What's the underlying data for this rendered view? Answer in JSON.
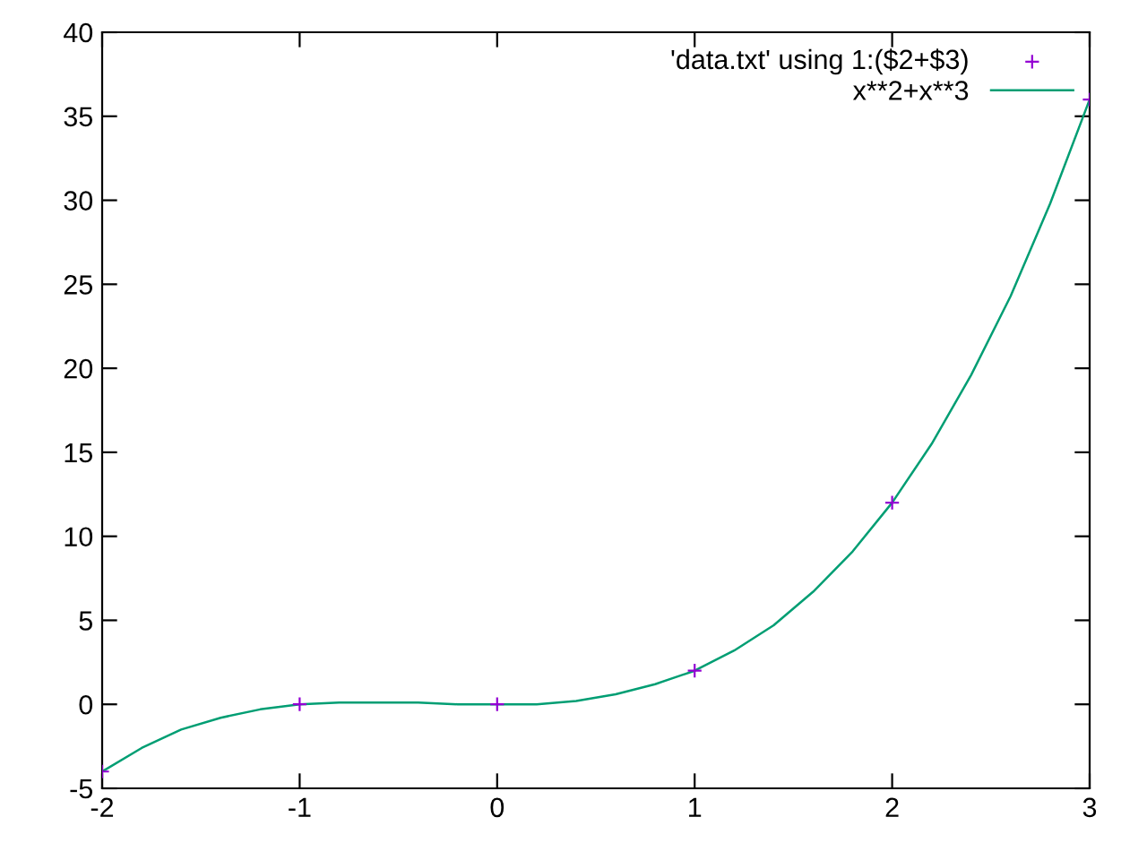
{
  "chart_data": {
    "type": "scatter",
    "series": [
      {
        "name": "'data.txt' using 1:($2+$3)",
        "color": "#9400d3",
        "marker": "cross",
        "x": [
          -2,
          -1,
          0,
          1,
          2,
          3
        ],
        "values": [
          -4,
          0,
          0,
          2,
          12,
          36
        ]
      },
      {
        "name": "x**2+x**3",
        "type": "line",
        "color": "#009e73",
        "marker": "none",
        "line_style": "solid",
        "x": [
          -2,
          -1.8,
          -1.6,
          -1.4,
          -1.2,
          -1,
          -0.8,
          -0.6,
          -0.4,
          -0.2,
          0,
          0.2,
          0.4,
          0.6,
          0.8,
          1,
          1.2,
          1.4,
          1.6,
          1.8,
          2,
          2.2,
          2.4,
          2.6,
          2.8,
          3
        ],
        "values": [
          -4,
          -2.6,
          -1.5,
          -0.8,
          -0.3,
          0,
          0.1,
          0.1,
          0.1,
          0,
          0,
          0,
          0.2,
          0.6,
          1.2,
          2,
          3.2,
          4.7,
          6.7,
          9.1,
          12,
          15.5,
          19.6,
          24.3,
          29.8,
          36
        ]
      }
    ],
    "xlim": [
      -2,
      3
    ],
    "xticks": [
      -2,
      -1,
      0,
      1,
      2,
      3
    ],
    "ylim": [
      -5,
      40
    ],
    "yticks": [
      -5,
      0,
      5,
      10,
      15,
      20,
      25,
      30,
      35,
      40
    ],
    "grid": false,
    "legend": "top right"
  }
}
